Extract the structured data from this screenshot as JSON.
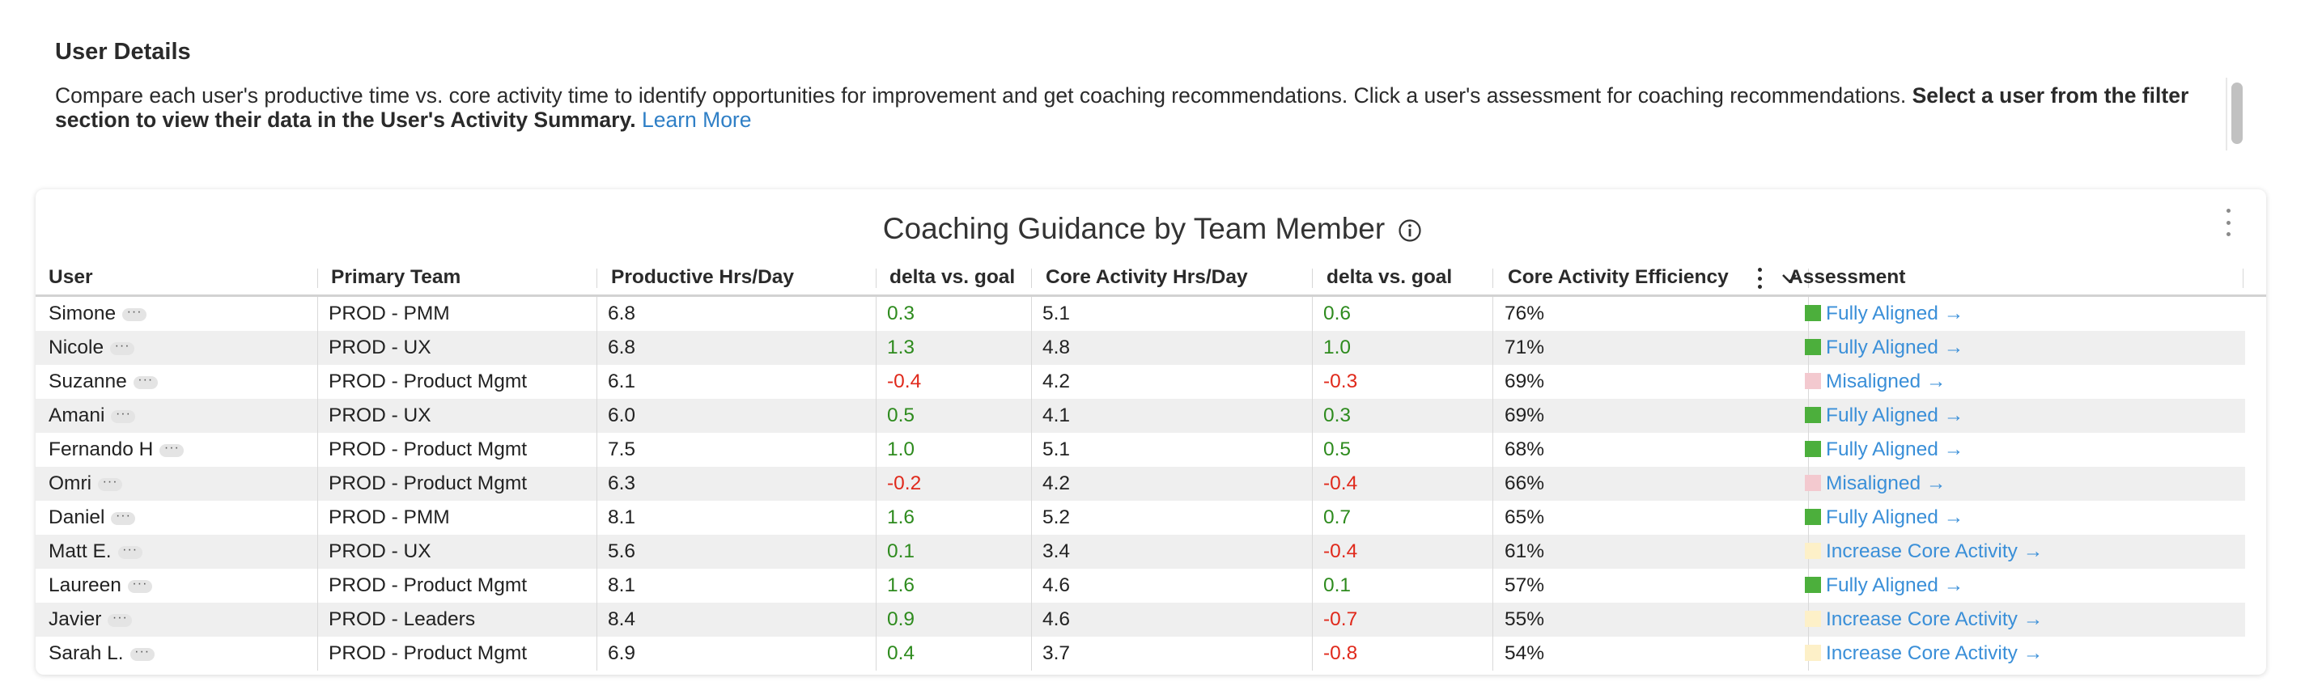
{
  "section": {
    "title": "User Details",
    "description": "Compare each user's productive time vs. core activity time to identify opportunities for improvement and get coaching recommendations. Click a user's assessment for coaching recommendations. ",
    "description_bold": "Select a user from the filter section to view their data in the User's Activity Summary.",
    "learn_more": "Learn More"
  },
  "card": {
    "title": "Coaching Guidance by Team Member"
  },
  "columns": [
    "User",
    "Primary Team",
    "Productive Hrs/Day",
    "delta vs. goal",
    "Core Activity Hrs/Day",
    "delta vs. goal",
    "Core Activity Efficiency",
    "Assessment"
  ],
  "row_more_label": "···",
  "rows": [
    {
      "user": "Simone",
      "team": "PROD - PMM",
      "prod": "6.8",
      "d1": "0.3",
      "core": "5.1",
      "d2": "0.6",
      "eff": "76%",
      "assessment": "Fully Aligned →"
    },
    {
      "user": "Nicole",
      "team": "PROD - UX",
      "prod": "6.8",
      "d1": "1.3",
      "core": "4.8",
      "d2": "1.0",
      "eff": "71%",
      "assessment": "Fully Aligned →"
    },
    {
      "user": "Suzanne",
      "team": "PROD - Product Mgmt",
      "prod": "6.1",
      "d1": "-0.4",
      "core": "4.2",
      "d2": "-0.3",
      "eff": "69%",
      "assessment": "Misaligned →"
    },
    {
      "user": "Amani",
      "team": "PROD - UX",
      "prod": "6.0",
      "d1": "0.5",
      "core": "4.1",
      "d2": "0.3",
      "eff": "69%",
      "assessment": "Fully Aligned →"
    },
    {
      "user": "Fernando H",
      "team": "PROD - Product Mgmt",
      "prod": "7.5",
      "d1": "1.0",
      "core": "5.1",
      "d2": "0.5",
      "eff": "68%",
      "assessment": "Fully Aligned →"
    },
    {
      "user": "Omri",
      "team": "PROD - Product Mgmt",
      "prod": "6.3",
      "d1": "-0.2",
      "core": "4.2",
      "d2": "-0.4",
      "eff": "66%",
      "assessment": "Misaligned →"
    },
    {
      "user": "Daniel",
      "team": "PROD - PMM",
      "prod": "8.1",
      "d1": "1.6",
      "core": "5.2",
      "d2": "0.7",
      "eff": "65%",
      "assessment": "Fully Aligned →"
    },
    {
      "user": "Matt E.",
      "team": "PROD - UX",
      "prod": "5.6",
      "d1": "0.1",
      "core": "3.4",
      "d2": "-0.4",
      "eff": "61%",
      "assessment": "Increase Core Activity →"
    },
    {
      "user": "Laureen",
      "team": "PROD - Product Mgmt",
      "prod": "8.1",
      "d1": "1.6",
      "core": "4.6",
      "d2": "0.1",
      "eff": "57%",
      "assessment": "Fully Aligned →"
    },
    {
      "user": "Javier",
      "team": "PROD - Leaders",
      "prod": "8.4",
      "d1": "0.9",
      "core": "4.6",
      "d2": "-0.7",
      "eff": "55%",
      "assessment": "Increase Core Activity →"
    },
    {
      "user": "Sarah L.",
      "team": "PROD - Product Mgmt",
      "prod": "6.9",
      "d1": "0.4",
      "core": "3.7",
      "d2": "-0.8",
      "eff": "54%",
      "assessment": "Increase Core Activity →"
    }
  ],
  "colors": {
    "positive": "#2e8b1e",
    "negative": "#e0291b",
    "link": "#3a8fd8",
    "swatch_fully_aligned": "#4caf3c",
    "swatch_misaligned": "#f3c9cf",
    "swatch_increase_core": "#fdf0c8"
  }
}
